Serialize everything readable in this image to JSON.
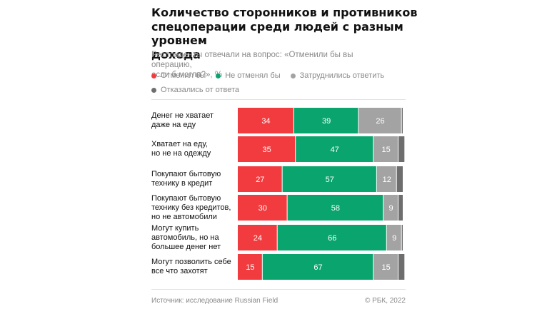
{
  "title": "Количество сторонников и противников\nспецоперации среди людей с разным уровнем\nдохода",
  "subtitle": "Респонденты отвечали на вопрос: «Отменили бы вы операцию,\nесли б могли?», %",
  "legend": [
    {
      "label": "Отменил бы",
      "color": "#f23b3f"
    },
    {
      "label": "Не отменял бы",
      "color": "#0aa56e"
    },
    {
      "label": "Затруднились ответить",
      "color": "#a3a3a3"
    },
    {
      "label": "Отказались от ответа",
      "color": "#6e6e6e"
    }
  ],
  "source": "Источник: исследование Russian Field",
  "copyright": "© РБК, 2022",
  "chart_data": {
    "type": "bar",
    "orientation": "horizontal",
    "stacked": true,
    "unit": "%",
    "categories": [
      "Денег не хватает\nдаже на еду",
      "Хватает на еду,\nно не на одежду",
      "Покупают бытовую\nтехнику в кредит",
      "Покупают бытовую\nтехнику без кредитов,\nно не автомобили",
      "Могут купить\nавтомобиль, но на\nбольшее денег нет",
      "Могут позволить себе\nвсе что захотят"
    ],
    "series": [
      {
        "name": "Отменил бы",
        "color": "#f23b3f",
        "values": [
          34,
          35,
          27,
          30,
          24,
          15
        ]
      },
      {
        "name": "Не отменял бы",
        "color": "#0aa56e",
        "values": [
          39,
          47,
          57,
          58,
          66,
          67
        ]
      },
      {
        "name": "Затруднились ответить",
        "color": "#a3a3a3",
        "values": [
          26,
          15,
          12,
          9,
          9,
          15
        ]
      },
      {
        "name": "Отказались от ответа",
        "color": "#6e6e6e",
        "values": [
          1,
          4,
          4,
          3,
          1,
          4
        ]
      }
    ],
    "xlim": [
      0,
      101
    ],
    "grid": false,
    "legend_position": "top"
  }
}
